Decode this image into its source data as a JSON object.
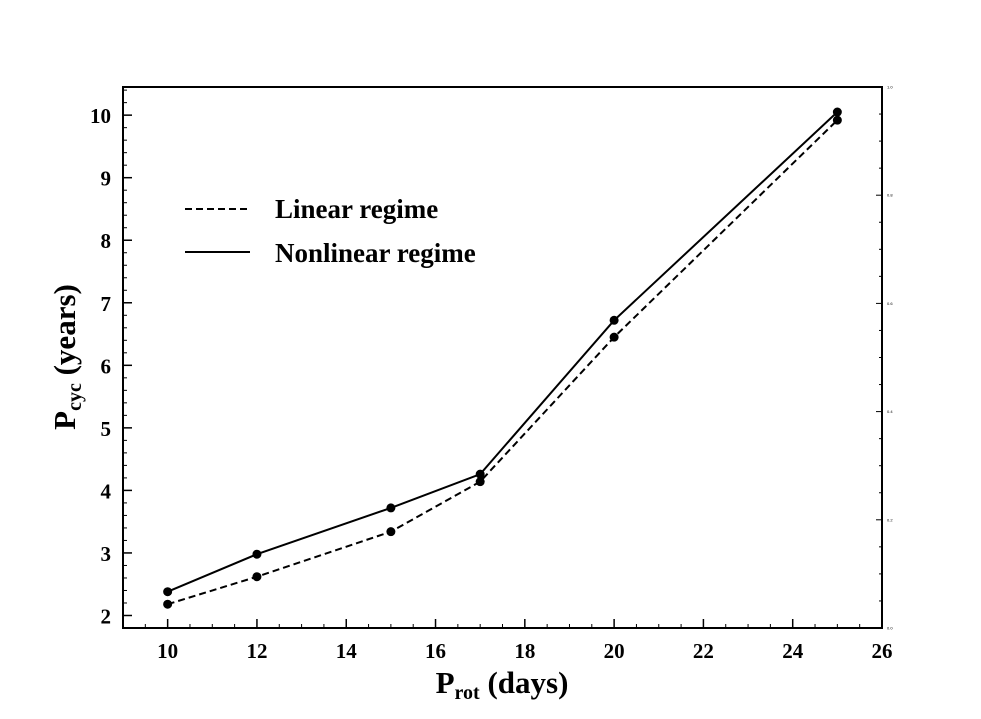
{
  "chart_data": {
    "type": "line",
    "xlabel": {
      "main": "P",
      "sub": "rot",
      "rest": " (days)"
    },
    "ylabel": {
      "main": "P",
      "sub": "cyc",
      "rest": " (years)"
    },
    "xlim": [
      9,
      26
    ],
    "ylim": [
      1.8,
      10.45
    ],
    "xticks": [
      10,
      12,
      14,
      16,
      18,
      20,
      22,
      24,
      26
    ],
    "yticks": [
      2,
      3,
      4,
      5,
      6,
      7,
      8,
      9,
      10
    ],
    "right_axis": {
      "ylim": [
        0,
        1
      ],
      "ticks": [
        0.0,
        0.2,
        0.4,
        0.6,
        0.8,
        1.0
      ],
      "tick_labels": [
        "0.0",
        "0.2",
        "0.4",
        "0.6",
        "0.8",
        "1.0"
      ]
    },
    "legend_position": "upper-left",
    "grid": false,
    "series": [
      {
        "name": "Linear regime",
        "style": "dashed",
        "color": "#000000",
        "x": [
          10,
          12,
          15,
          17,
          20,
          25
        ],
        "y": [
          2.18,
          2.62,
          3.34,
          4.14,
          6.45,
          9.92
        ]
      },
      {
        "name": "Nonlinear regime",
        "style": "solid",
        "color": "#000000",
        "x": [
          10,
          12,
          15,
          17,
          20,
          25
        ],
        "y": [
          2.38,
          2.98,
          3.72,
          4.26,
          6.72,
          10.05
        ]
      }
    ]
  }
}
